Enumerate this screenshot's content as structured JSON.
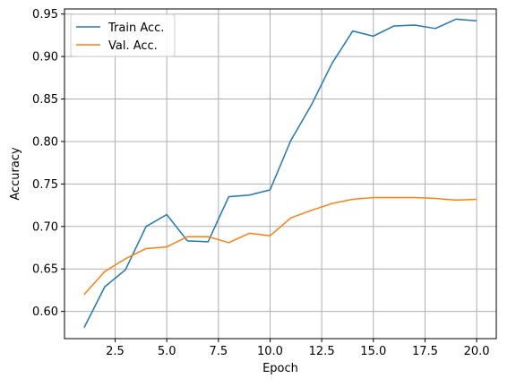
{
  "chart_data": {
    "type": "line",
    "title": "",
    "xlabel": "Epoch",
    "ylabel": "Accuracy",
    "xlim": [
      0.05,
      20.95
    ],
    "ylim": [
      0.568,
      0.956
    ],
    "xticks": [
      2.5,
      5.0,
      7.5,
      10.0,
      12.5,
      15.0,
      17.5,
      20.0
    ],
    "xtick_labels": [
      "2.5",
      "5.0",
      "7.5",
      "10.0",
      "12.5",
      "15.0",
      "17.5",
      "20.0"
    ],
    "yticks": [
      0.6,
      0.65,
      0.7,
      0.75,
      0.8,
      0.85,
      0.9,
      0.95
    ],
    "ytick_labels": [
      "0.60",
      "0.65",
      "0.70",
      "0.75",
      "0.80",
      "0.85",
      "0.90",
      "0.95"
    ],
    "grid": true,
    "legend_position": "top-left",
    "x": [
      1,
      2,
      3,
      4,
      5,
      6,
      7,
      8,
      9,
      10,
      11,
      12,
      13,
      14,
      15,
      16,
      17,
      18,
      19,
      20
    ],
    "series": [
      {
        "name": "Train Acc.",
        "color": "#1f77b4",
        "values": [
          0.581,
          0.629,
          0.649,
          0.7,
          0.714,
          0.683,
          0.682,
          0.735,
          0.737,
          0.743,
          0.801,
          0.843,
          0.892,
          0.93,
          0.924,
          0.936,
          0.937,
          0.933,
          0.944,
          0.942
        ]
      },
      {
        "name": "Val. Acc.",
        "color": "#ff7f0e",
        "values": [
          0.62,
          0.647,
          0.662,
          0.674,
          0.676,
          0.688,
          0.688,
          0.681,
          0.692,
          0.689,
          0.71,
          0.719,
          0.727,
          0.732,
          0.734,
          0.734,
          0.734,
          0.733,
          0.731,
          0.732
        ]
      }
    ]
  }
}
